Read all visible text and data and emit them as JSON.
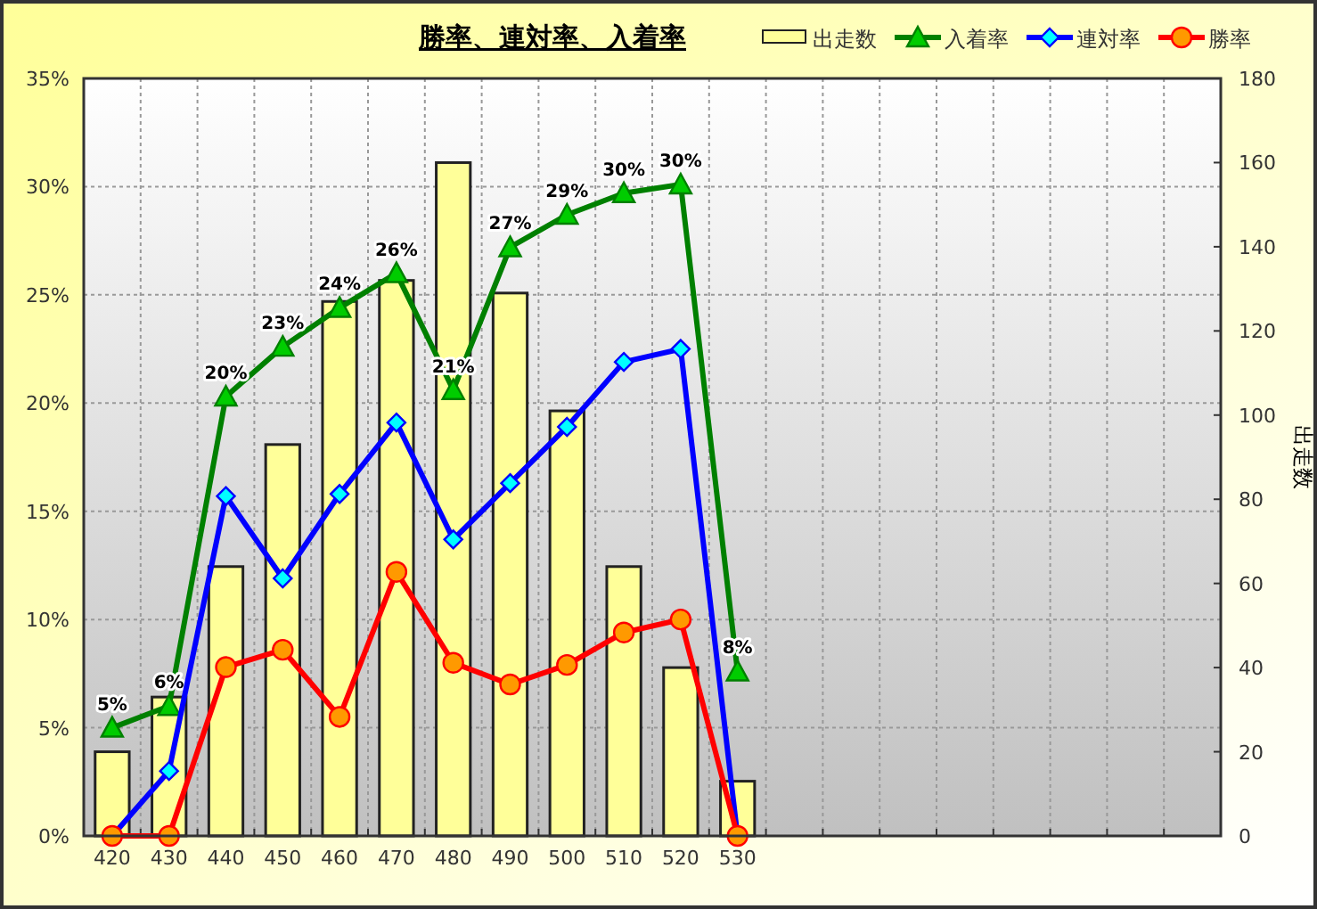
{
  "chart_data": {
    "type": "line",
    "title": "勝率、連対率、入着率",
    "y2label": "出走数",
    "categories": [
      "420",
      "430",
      "440",
      "450",
      "460",
      "470",
      "480",
      "490",
      "500",
      "510",
      "520",
      "530",
      null,
      null,
      null,
      null,
      null,
      null,
      null,
      null
    ],
    "series": [
      {
        "name": "出走数",
        "type": "bar",
        "axis": "y2",
        "color": "#ffff99",
        "values": [
          20,
          33,
          64,
          93,
          127,
          132,
          160,
          129,
          101,
          64,
          40,
          13,
          null,
          null,
          null,
          null,
          null,
          null,
          null,
          null
        ]
      },
      {
        "name": "入着率",
        "marker": "triangle",
        "color": "#008000",
        "values": [
          5.0,
          6.0,
          20.3,
          22.6,
          24.4,
          26.0,
          20.6,
          27.2,
          28.7,
          29.7,
          30.1,
          7.6,
          null,
          null,
          null,
          null,
          null,
          null,
          null,
          null
        ],
        "value_labels": [
          "5%",
          "6%",
          "20%",
          "23%",
          "24%",
          "26%",
          "21%",
          "27%",
          "29%",
          "30%",
          "30%",
          "8%",
          null,
          null,
          null,
          null,
          null,
          null,
          null,
          null
        ]
      },
      {
        "name": "連対率",
        "marker": "diamond",
        "color": "#0000ff",
        "values": [
          0,
          3.0,
          15.7,
          11.9,
          15.8,
          19.1,
          13.7,
          16.3,
          18.9,
          21.9,
          22.5,
          0,
          null,
          null,
          null,
          null,
          null,
          null,
          null,
          null
        ]
      },
      {
        "name": "勝率",
        "marker": "circle",
        "color": "#ff0000",
        "values": [
          0,
          0,
          7.8,
          8.6,
          5.5,
          12.2,
          8.0,
          7.0,
          7.9,
          9.4,
          10.0,
          0,
          null,
          null,
          null,
          null,
          null,
          null,
          null,
          null
        ]
      }
    ],
    "ylim": [
      0,
      35
    ],
    "yticks": [
      {
        "value": 0,
        "label": "0%"
      },
      {
        "value": 5,
        "label": "5%"
      },
      {
        "value": 10,
        "label": "10%"
      },
      {
        "value": 15,
        "label": "15%"
      },
      {
        "value": 20,
        "label": "20%"
      },
      {
        "value": 25,
        "label": "25%"
      },
      {
        "value": 30,
        "label": "30%"
      },
      {
        "value": 35,
        "label": "35%"
      }
    ],
    "y2lim": [
      0,
      180
    ],
    "y2ticks": [
      0,
      20,
      40,
      60,
      80,
      100,
      120,
      140,
      160,
      180
    ],
    "grid": true,
    "legend": "top right"
  }
}
